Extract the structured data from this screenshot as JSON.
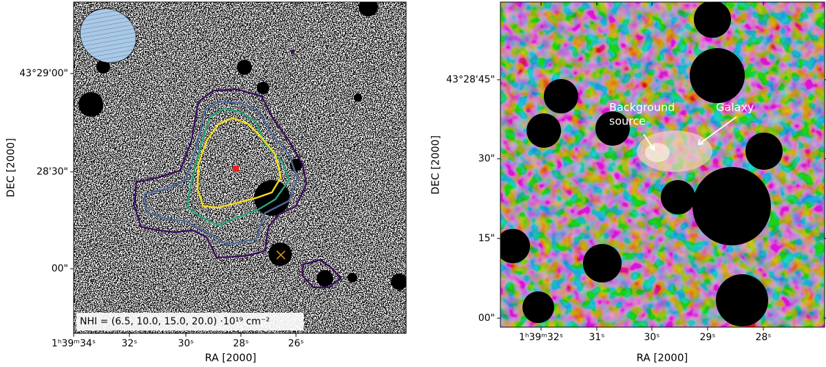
{
  "panels": [
    {
      "x_label": "RA [2000]",
      "y_label": "DEC [2000]",
      "xticks": [
        "1ʰ39ᵐ34ˢ",
        "32ˢ",
        "30ˢ",
        "28ˢ",
        "26ˢ"
      ],
      "yticks": [
        "43°29'00\"",
        "28'30\"",
        "00\""
      ],
      "legend": "NHI = (6.5, 10.0, 15.0, 20.0) ·10¹⁹ cm⁻²"
    },
    {
      "x_label": "RA [2000]",
      "y_label": "DEC [2000]",
      "xticks": [
        "1ʰ39ᵐ32ˢ",
        "31ˢ",
        "30ˢ",
        "29ˢ",
        "28ˢ"
      ],
      "yticks": [
        "43°28'45\"",
        "30\"",
        "15\"",
        "00\""
      ],
      "background_source": [
        "Background",
        "source"
      ],
      "galaxy": "Galaxy"
    }
  ]
}
